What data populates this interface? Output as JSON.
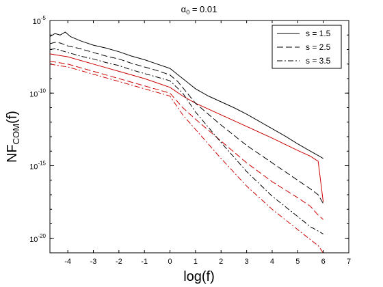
{
  "chart_data": {
    "type": "line",
    "title": "α0 = 0.01",
    "title_parts": {
      "base": "α",
      "sub": "0",
      "rest": " = 0.01"
    },
    "xlabel": "log(f)",
    "ylabel_parts": {
      "base": "NF",
      "sub": "COM",
      "rest": "(f)"
    },
    "xlim": [
      -4.7,
      7
    ],
    "ylim_log10": [
      -21,
      -5
    ],
    "y_scale": "log",
    "x_ticks": [
      -4,
      -3,
      -2,
      -1,
      0,
      1,
      2,
      3,
      4,
      5,
      6,
      7
    ],
    "y_ticks": [
      {
        "exponent": -20,
        "base": "10",
        "exp_label": "-20"
      },
      {
        "exponent": -15,
        "base": "10",
        "exp_label": "-15"
      },
      {
        "exponent": -10,
        "base": "10",
        "exp_label": "-10"
      },
      {
        "exponent": -5,
        "base": "10",
        "exp_label": "-5"
      }
    ],
    "grid": false,
    "legend_position": "top-right",
    "legend": [
      {
        "label": "s = 1.5",
        "dash": "solid"
      },
      {
        "label": "s = 2.5",
        "dash": "dashed"
      },
      {
        "label": "s = 3.5",
        "dash": "dashdot"
      }
    ],
    "series": [
      {
        "s": "1.5",
        "color": "#000000",
        "dash": "solid",
        "x": [
          -4.7,
          -4.5,
          -4.3,
          -4.1,
          -3.9,
          -3.5,
          -3,
          -2.5,
          -2,
          -1.5,
          -1,
          -0.5,
          0,
          0.5,
          1,
          1.5,
          2,
          2.5,
          3,
          3.5,
          4,
          4.5,
          5,
          5.5,
          5.8,
          6.0
        ],
        "log10_y": [
          -6.1,
          -5.9,
          -6.0,
          -5.8,
          -6.1,
          -6.4,
          -6.7,
          -6.9,
          -7.15,
          -7.45,
          -7.7,
          -8.0,
          -8.3,
          -9.0,
          -9.7,
          -10.2,
          -10.6,
          -11.0,
          -11.45,
          -11.95,
          -12.45,
          -12.95,
          -13.5,
          -14.0,
          -14.3,
          -14.5
        ]
      },
      {
        "s": "1.5",
        "color": "#cc0000",
        "dash": "solid",
        "x": [
          -4.7,
          -4,
          -3,
          -2,
          -1,
          -0.5,
          0,
          0.5,
          1,
          2,
          3,
          4,
          5,
          5.5,
          5.8,
          6.0
        ],
        "log10_y": [
          -7.3,
          -7.5,
          -8.0,
          -8.5,
          -9.0,
          -9.3,
          -9.6,
          -10.2,
          -10.7,
          -11.5,
          -12.3,
          -13.1,
          -13.95,
          -14.35,
          -14.7,
          -17.5
        ]
      },
      {
        "s": "2.5",
        "color": "#000000",
        "dash": "dashed",
        "x": [
          -4.7,
          -4.5,
          -4.3,
          -4,
          -3.5,
          -3,
          -2.5,
          -2,
          -1.5,
          -1,
          -0.5,
          0,
          0.3,
          1,
          2,
          3,
          4,
          5,
          5.5,
          5.8,
          6.0
        ],
        "log10_y": [
          -6.6,
          -6.5,
          -6.55,
          -6.75,
          -6.95,
          -7.2,
          -7.45,
          -7.65,
          -7.95,
          -8.2,
          -8.45,
          -8.75,
          -9.2,
          -10.7,
          -12.2,
          -13.6,
          -14.8,
          -16.0,
          -16.6,
          -17.0,
          -17.6
        ]
      },
      {
        "s": "2.5",
        "color": "#cc0000",
        "dash": "dashed",
        "x": [
          -4.7,
          -4,
          -3,
          -2,
          -1,
          0,
          0.5,
          1,
          2,
          3,
          4,
          5,
          5.5,
          5.8,
          6.0
        ],
        "log10_y": [
          -7.8,
          -8.0,
          -8.5,
          -9.0,
          -9.5,
          -10.0,
          -11.0,
          -11.8,
          -13.3,
          -14.8,
          -16.1,
          -17.2,
          -17.8,
          -18.4,
          -18.7
        ]
      },
      {
        "s": "3.5",
        "color": "#000000",
        "dash": "dashdot",
        "x": [
          -4.7,
          -4.5,
          -4,
          -3.5,
          -3,
          -2.5,
          -2,
          -1.5,
          -1,
          -0.5,
          0,
          0.5,
          1,
          2,
          3,
          4,
          5,
          5.5,
          5.8,
          6.0
        ],
        "log10_y": [
          -7.0,
          -6.95,
          -7.2,
          -7.45,
          -7.65,
          -7.9,
          -8.1,
          -8.4,
          -8.65,
          -8.9,
          -9.15,
          -10.0,
          -11.3,
          -13.4,
          -15.4,
          -17.1,
          -18.5,
          -19.2,
          -19.5,
          -19.7
        ]
      },
      {
        "s": "3.5",
        "color": "#cc0000",
        "dash": "dashdot",
        "x": [
          -4.7,
          -4,
          -3,
          -2,
          -1,
          0,
          0.5,
          1,
          2,
          3,
          4,
          5,
          5.5,
          5.8,
          6.0
        ],
        "log10_y": [
          -8.0,
          -8.2,
          -8.7,
          -9.2,
          -9.7,
          -10.2,
          -11.5,
          -12.5,
          -14.5,
          -16.4,
          -18.0,
          -19.4,
          -20.1,
          -20.5,
          -21.0
        ]
      }
    ]
  }
}
